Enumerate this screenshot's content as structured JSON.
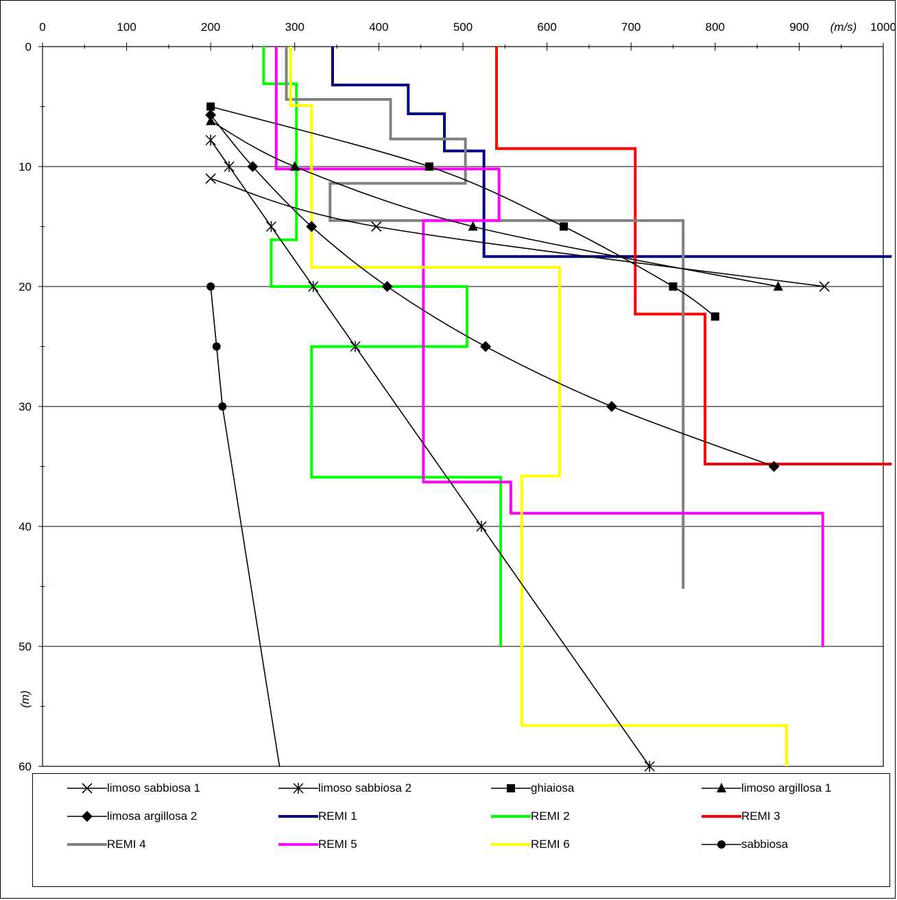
{
  "chart_data": {
    "type": "line",
    "x_unit_label": "(m/s)",
    "y_unit_label": "(m)",
    "xlim": [
      0,
      1000
    ],
    "ylim": [
      0,
      60
    ],
    "x_ticks": [
      "0",
      "100",
      "200",
      "300",
      "400",
      "500",
      "600",
      "700",
      "800",
      "900",
      "1000"
    ],
    "y_ticks": [
      "0",
      "10",
      "20",
      "30",
      "40",
      "50",
      "60"
    ],
    "grid": "horizontal",
    "legend_position": "bottom",
    "series": [
      {
        "name": "limoso sabbiosa 1",
        "color": "#000000",
        "marker": "x",
        "style": "smooth",
        "x": [
          200,
          397,
          930
        ],
        "y": [
          11,
          15,
          20
        ]
      },
      {
        "name": "limoso sabbiosa 2",
        "color": "#000000",
        "marker": "star",
        "style": "smooth",
        "x": [
          200,
          222,
          272,
          322,
          372,
          522,
          722
        ],
        "y": [
          7.8,
          10,
          15,
          20,
          25,
          40,
          60
        ]
      },
      {
        "name": "ghiaiosa",
        "color": "#000000",
        "marker": "square",
        "style": "smooth",
        "x": [
          200,
          460,
          620,
          750,
          800
        ],
        "y": [
          5,
          10,
          15,
          20,
          22.5
        ]
      },
      {
        "name": "limoso argillosa 1",
        "color": "#000000",
        "marker": "triangle",
        "style": "smooth",
        "x": [
          200,
          300,
          512,
          875
        ],
        "y": [
          6.2,
          10,
          15,
          20
        ]
      },
      {
        "name": "limosa argillosa 2",
        "color": "#000000",
        "marker": "diamond",
        "style": "smooth",
        "x": [
          200,
          250,
          320,
          410,
          527,
          677,
          870
        ],
        "y": [
          5.7,
          10,
          15,
          20,
          25,
          30,
          35
        ]
      },
      {
        "name": "REMI 1",
        "color": "#000080",
        "marker": "none",
        "style": "step",
        "x": [
          345,
          345,
          435,
          435,
          478,
          478,
          525,
          525,
          1010
        ],
        "y": [
          0,
          3.2,
          3.2,
          5.6,
          5.6,
          8.7,
          8.7,
          17.5,
          17.5
        ]
      },
      {
        "name": "REMI 2",
        "color": "#00ff00",
        "marker": "none",
        "style": "step",
        "x": [
          263,
          263,
          302,
          302,
          272,
          272,
          505,
          505,
          320,
          320,
          545,
          545
        ],
        "y": [
          0,
          3.1,
          3.1,
          16.1,
          16.1,
          20,
          20,
          25,
          25,
          35.9,
          35.9,
          50
        ]
      },
      {
        "name": "REMI 3",
        "color": "#ff0000",
        "marker": "none",
        "style": "step",
        "x": [
          540,
          540,
          705,
          705,
          788,
          788,
          1010
        ],
        "y": [
          0,
          8.5,
          8.5,
          22.3,
          22.3,
          34.8,
          34.8
        ]
      },
      {
        "name": "REMI 4",
        "color": "#808080",
        "marker": "none",
        "style": "step",
        "x": [
          290,
          290,
          414,
          414,
          503,
          503,
          342,
          342,
          762,
          762
        ],
        "y": [
          0,
          4.4,
          4.4,
          7.7,
          7.7,
          11.4,
          11.4,
          14.5,
          14.5,
          45.2
        ]
      },
      {
        "name": "REMI 5",
        "color": "#ff00ff",
        "marker": "none",
        "style": "step",
        "x": [
          278,
          278,
          543,
          543,
          453,
          453,
          557,
          557,
          928,
          928
        ],
        "y": [
          0,
          10.2,
          10.2,
          14.5,
          14.5,
          36.3,
          36.3,
          38.9,
          38.9,
          50
        ]
      },
      {
        "name": "REMI 6",
        "color": "#ffff00",
        "marker": "none",
        "style": "step",
        "x": [
          295,
          295,
          320,
          320,
          615,
          615,
          570,
          570,
          885,
          885
        ],
        "y": [
          0,
          4.9,
          4.9,
          18.4,
          18.4,
          35.8,
          35.8,
          56.6,
          56.6,
          60
        ]
      },
      {
        "name": "sabbiosa",
        "color": "#000000",
        "marker": "circle",
        "style": "line",
        "x": [
          200,
          207,
          214,
          283
        ],
        "y": [
          20,
          25,
          30,
          60.5
        ]
      }
    ]
  }
}
